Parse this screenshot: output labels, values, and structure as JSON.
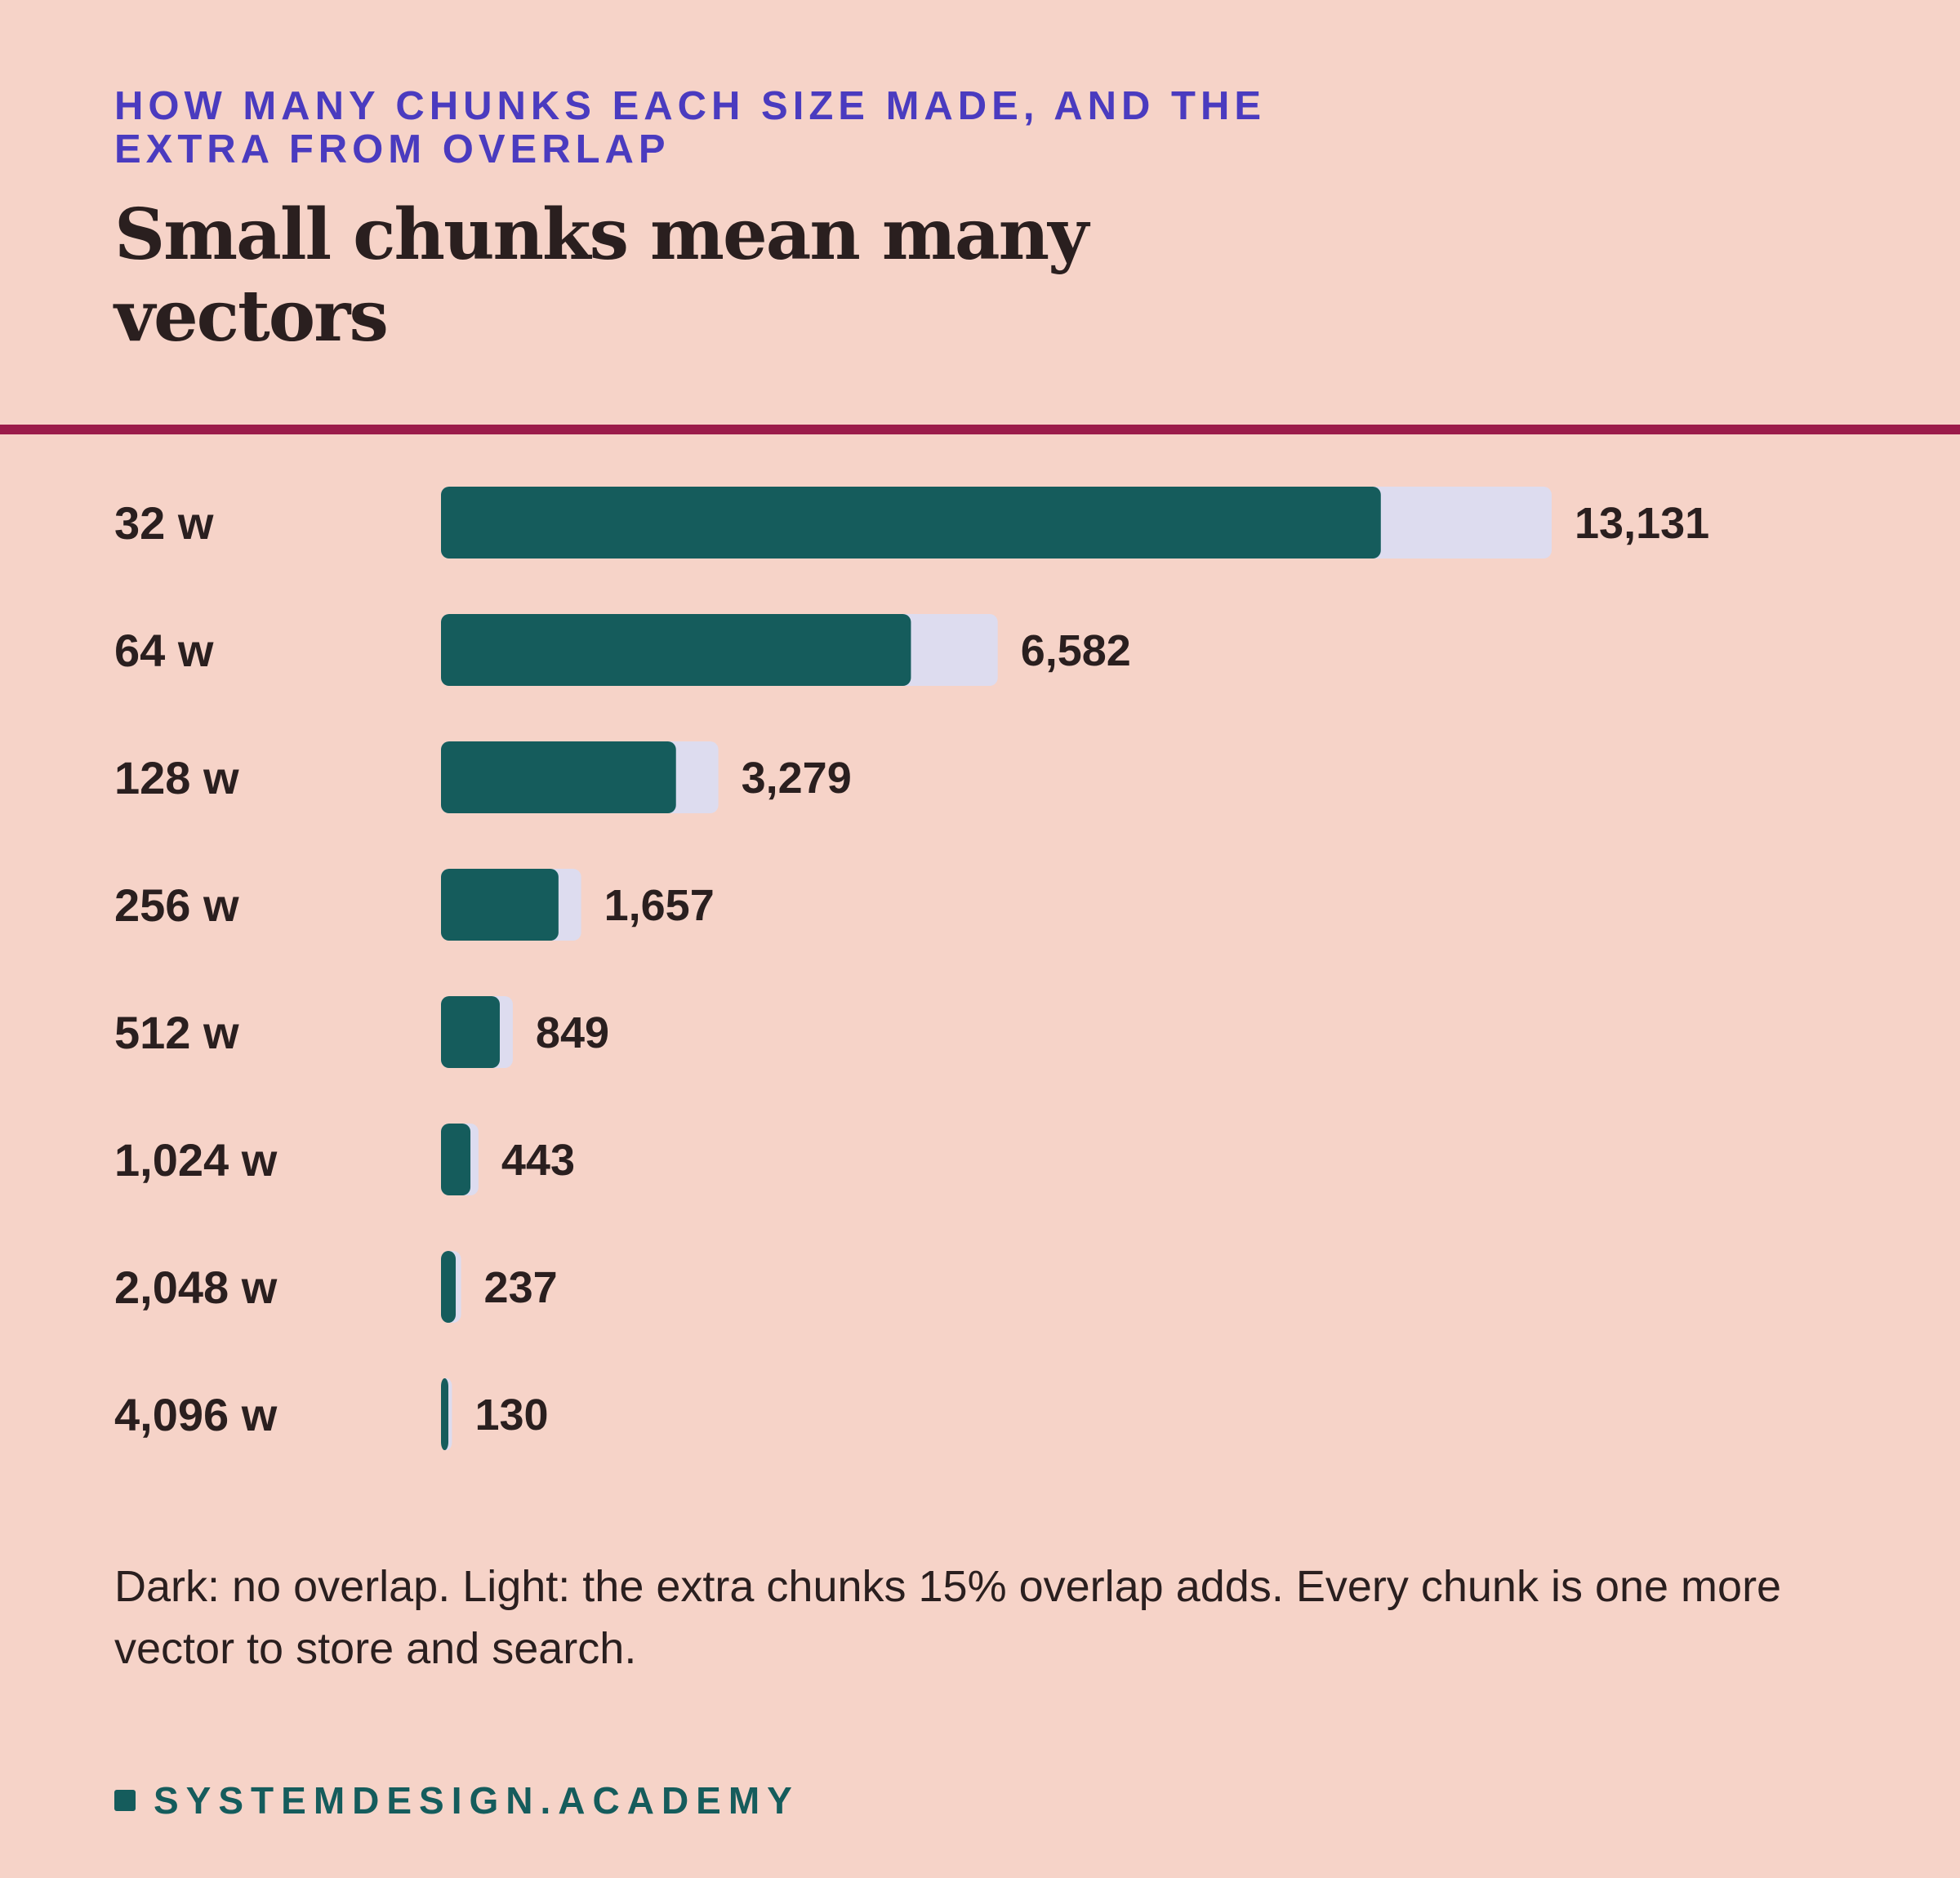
{
  "eyebrow": "HOW MANY CHUNKS EACH SIZE MADE, AND THE EXTRA FROM OVERLAP",
  "title": "Small chunks mean many vectors",
  "note": "Dark: no overlap. Light: the extra chunks 15% overlap adds. Every chunk is one more vector to store and search.",
  "brand": "SYSTEMDESIGN.ACADEMY",
  "colors": {
    "background": "#f6d3c8",
    "no_overlap": "#155c5c",
    "overlap_extra": "#dddcef",
    "rule": "#9b1b4a",
    "eyebrow": "#4a3bbf",
    "brand": "#155c5c"
  },
  "chart_data": {
    "type": "bar",
    "orientation": "horizontal",
    "stacked": true,
    "categories": [
      "32 w",
      "64 w",
      "128 w",
      "256 w",
      "512 w",
      "1,024 w",
      "2,048 w",
      "4,096 w"
    ],
    "series": [
      {
        "values": [
          11111,
          5556,
          2778,
          1389,
          695,
          348,
          174,
          87
        ]
      },
      {
        "values": [
          2020,
          1026,
          501,
          268,
          154,
          95,
          63,
          43
        ]
      }
    ],
    "totals": [
      13131,
      6582,
      3279,
      1657,
      849,
      443,
      237,
      130
    ],
    "total_labels": [
      "13,131",
      "6,582",
      "3,279",
      "1,657",
      "849",
      "443",
      "237",
      "130"
    ],
    "xlim": [
      0,
      13131
    ],
    "grid": false,
    "legend": "none"
  }
}
